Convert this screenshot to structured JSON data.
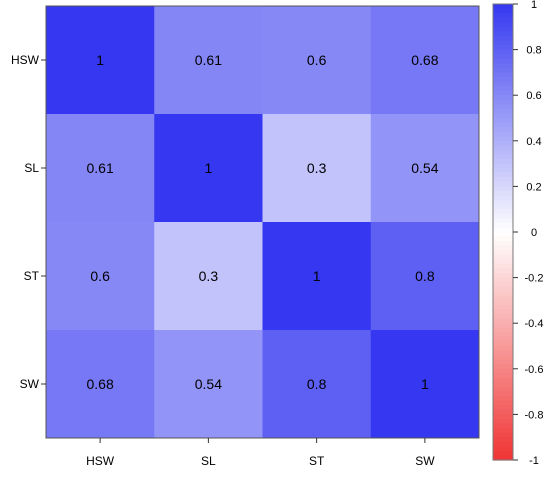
{
  "chart_data": {
    "type": "heatmap",
    "title": "",
    "xlabel": "",
    "ylabel": "",
    "row_labels": [
      "HSW",
      "SL",
      "ST",
      "SW"
    ],
    "col_labels": [
      "HSW",
      "SL",
      "ST",
      "SW"
    ],
    "values": [
      [
        1,
        0.61,
        0.6,
        0.68
      ],
      [
        0.61,
        1,
        0.3,
        0.54
      ],
      [
        0.6,
        0.3,
        1,
        0.8
      ],
      [
        0.68,
        0.54,
        0.8,
        1
      ]
    ],
    "cell_labels": [
      [
        "1",
        "0.61",
        "0.6",
        "0.68"
      ],
      [
        "0.61",
        "1",
        "0.3",
        "0.54"
      ],
      [
        "0.6",
        "0.3",
        "1",
        "0.8"
      ],
      [
        "0.68",
        "0.54",
        "0.8",
        "1"
      ]
    ],
    "color_scale": {
      "min": -1,
      "max": 1,
      "low_color": "#f03434",
      "mid_color": "#ffffff",
      "high_color": "#3538f0"
    },
    "legend": {
      "placement": "right",
      "ticks": [
        1,
        0.8,
        0.6,
        0.4,
        0.2,
        0,
        -0.2,
        -0.4,
        -0.6,
        -0.8,
        -1
      ],
      "tick_labels": [
        "1",
        "0.8",
        "0.6",
        "0.4",
        "0.2",
        "0",
        "-0.2",
        "-0.4",
        "-0.6",
        "-0.8",
        "-1"
      ]
    },
    "grid": false
  }
}
